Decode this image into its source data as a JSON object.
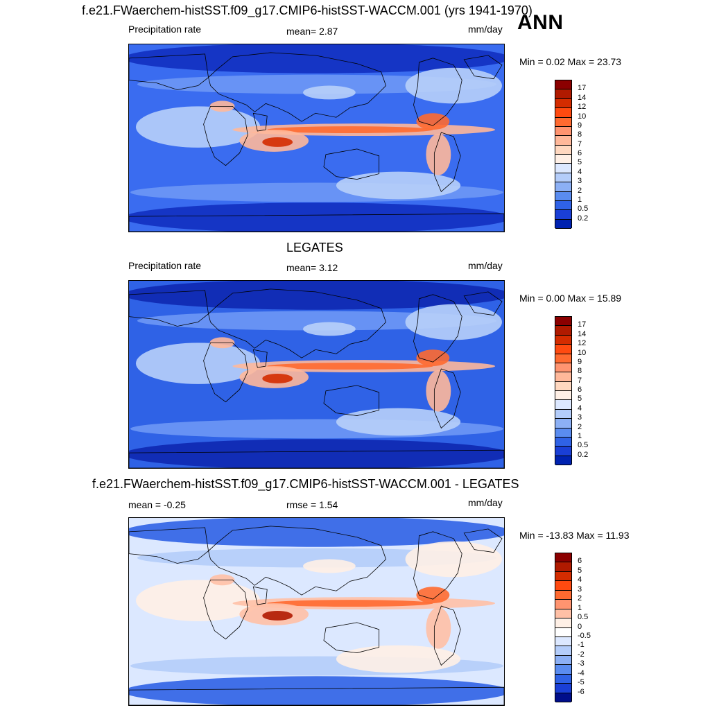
{
  "season": "ANN",
  "panels": [
    {
      "title": "f.e21.FWaerchem-histSST.f09_g17.CMIP6-histSST-WACCM.001 (yrs 1941-1970)",
      "left_text": "Precipitation rate",
      "center_text": "mean=   2.87",
      "units": "mm/day",
      "minmax": "Min =   0.02 Max =  23.73",
      "colorbar": {
        "labels": [
          "17",
          "14",
          "12",
          "10",
          "9",
          "8",
          "7",
          "6",
          "5",
          "4",
          "3",
          "2",
          "1",
          "0.5",
          "0.2"
        ],
        "colors": [
          "#8b0000",
          "#b01a00",
          "#d42c00",
          "#ff4a10",
          "#ff6a30",
          "#ff9470",
          "#ffb89a",
          "#ffd8c0",
          "#fff0e6",
          "#dce8ff",
          "#b4cdfa",
          "#8cb0f5",
          "#5a8cf0",
          "#2f62e6",
          "#1a3fd6",
          "#0022b0"
        ]
      },
      "map_colors": {
        "ocean": "#3a6cf0",
        "deep": "#1230c0",
        "mid": "#6e98f5",
        "light": "#b8d0fa",
        "warm1": "#ffb89a",
        "warm2": "#ff6a30",
        "warm3": "#d42c00",
        "land_outline": "#000000"
      }
    },
    {
      "title": "LEGATES",
      "left_text": "Precipitation rate",
      "center_text": "mean=   3.12",
      "units": "mm/day",
      "minmax": "Min =   0.00 Max =  15.89",
      "colorbar": {
        "labels": [
          "17",
          "14",
          "12",
          "10",
          "9",
          "8",
          "7",
          "6",
          "5",
          "4",
          "3",
          "2",
          "1",
          "0.5",
          "0.2"
        ],
        "colors": [
          "#8b0000",
          "#b01a00",
          "#d42c00",
          "#ff4a10",
          "#ff6a30",
          "#ff9470",
          "#ffb89a",
          "#ffd8c0",
          "#fff0e6",
          "#dce8ff",
          "#b4cdfa",
          "#8cb0f5",
          "#5a8cf0",
          "#2f62e6",
          "#1a3fd6",
          "#0022b0"
        ]
      },
      "map_colors": {
        "ocean": "#2f62e6",
        "deep": "#0e28b0",
        "mid": "#6e98f5",
        "light": "#b8d0fa",
        "warm1": "#ffb89a",
        "warm2": "#ff6a30",
        "warm3": "#d42c00",
        "land_outline": "#000000"
      }
    },
    {
      "title": "f.e21.FWaerchem-histSST.f09_g17.CMIP6-histSST-WACCM.001 - LEGATES",
      "left_text": "mean =  -0.25",
      "center_text": "rmse =    1.54",
      "units": "mm/day",
      "minmax": "Min = -13.83 Max =  11.93",
      "colorbar": {
        "labels": [
          "6",
          "5",
          "4",
          "3",
          "2",
          "1",
          "0.5",
          "0",
          "-0.5",
          "-1",
          "-2",
          "-3",
          "-4",
          "-5",
          "-6"
        ],
        "colors": [
          "#8b0000",
          "#b01a00",
          "#d42c00",
          "#ff4a10",
          "#ff6a30",
          "#ff9470",
          "#ffc0a6",
          "#fff0e6",
          "#ffffff",
          "#dce8ff",
          "#b4cdfa",
          "#8cb0f5",
          "#5a8cf0",
          "#2f62e6",
          "#1a3fd6",
          "#000e8a"
        ]
      },
      "map_colors": {
        "ocean": "#dce8ff",
        "deep": "#2f62e6",
        "mid": "#b4cdfa",
        "light": "#fff0e6",
        "warm1": "#ffc0a6",
        "warm2": "#ff6a30",
        "warm3": "#b01a00",
        "land_outline": "#000000"
      }
    }
  ]
}
